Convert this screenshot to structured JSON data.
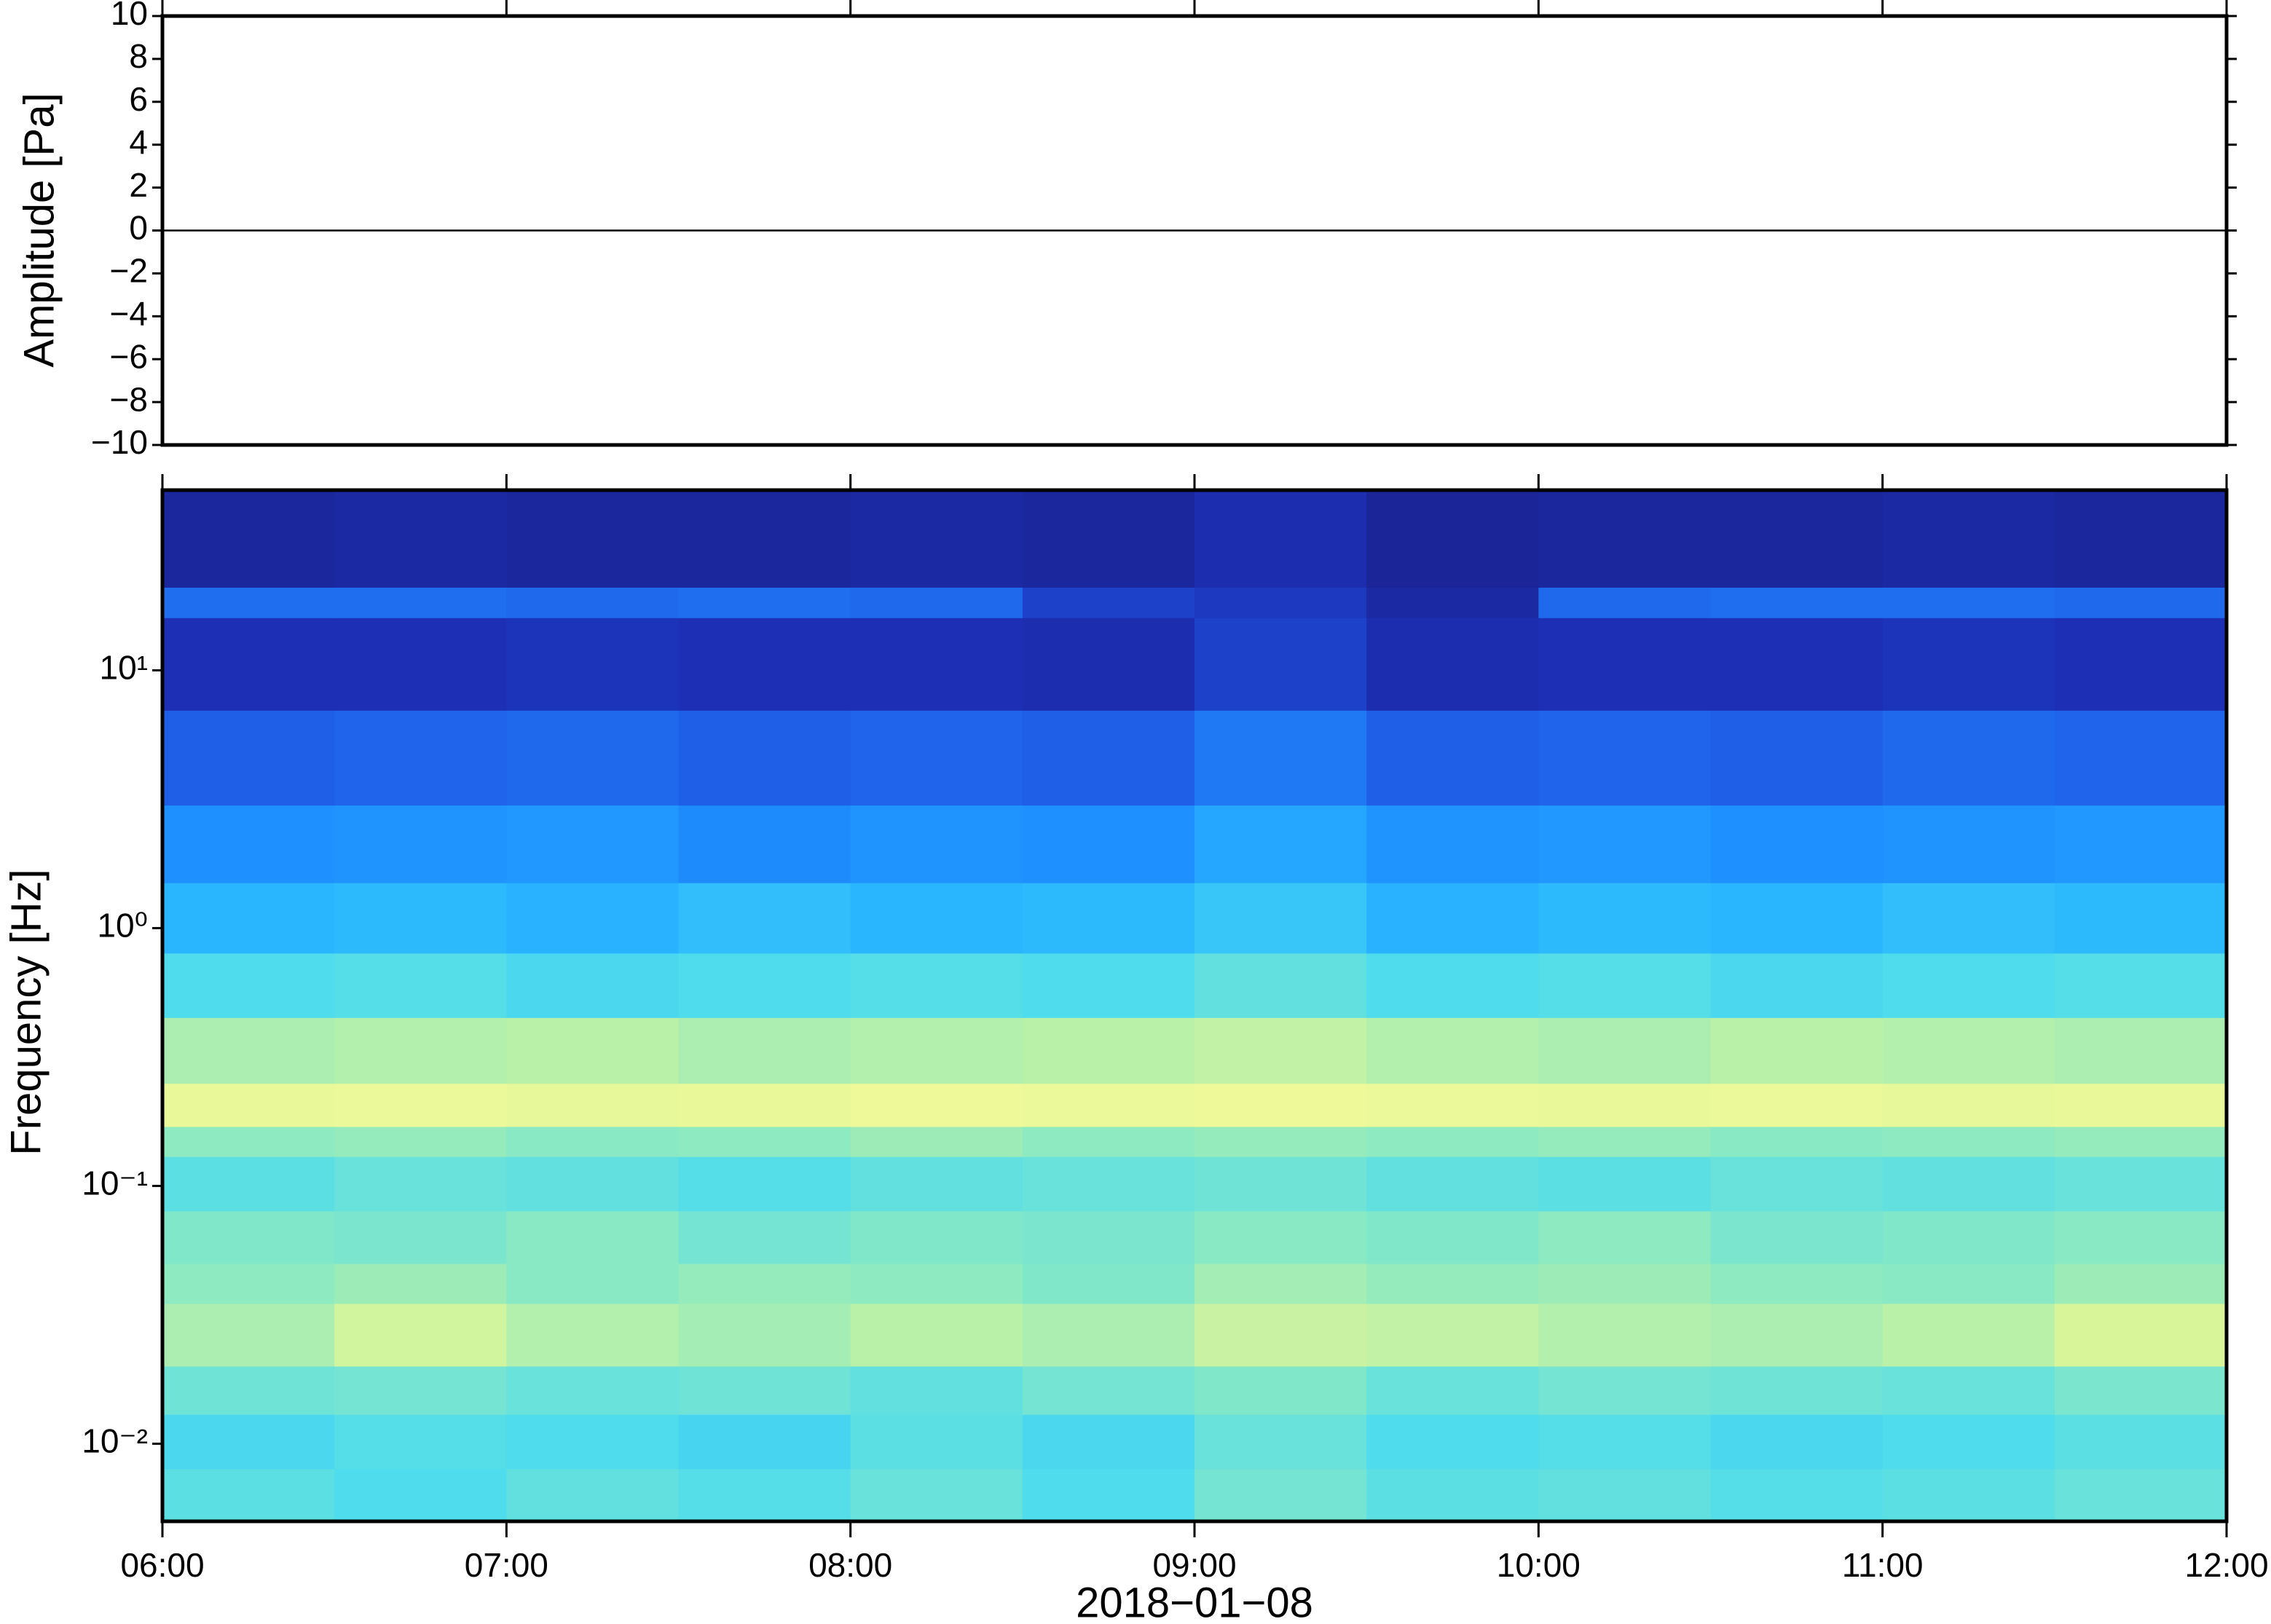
{
  "chart_data": [
    {
      "type": "line",
      "ylabel": "Amplitude [Pa]",
      "x": [
        "06:00",
        "07:00",
        "08:00",
        "09:00",
        "10:00",
        "11:00",
        "12:00"
      ],
      "values": [
        0,
        0,
        0,
        0,
        0,
        0,
        0
      ],
      "color": "#000000",
      "xlim": [
        "06:00",
        "12:00"
      ],
      "ylim": [
        -10,
        10
      ],
      "yticks": [
        {
          "value": -10,
          "label": "−10"
        },
        {
          "value": -8,
          "label": "−8"
        },
        {
          "value": -6,
          "label": "−6"
        },
        {
          "value": -4,
          "label": "−4"
        },
        {
          "value": -2,
          "label": "−2"
        },
        0,
        2,
        4,
        6,
        8,
        10
      ]
    },
    {
      "type": "heatmap",
      "ylabel": "Frequency [Hz]",
      "xlabel": "2018−01−08",
      "xlim": [
        "06:00",
        "12:00"
      ],
      "xticks": [
        "06:00",
        "07:00",
        "08:00",
        "09:00",
        "10:00",
        "11:00",
        "12:00"
      ],
      "ylim": [
        0.005,
        50
      ],
      "log_y": true,
      "yticks": [
        {
          "value": 0.01,
          "label": "10⁻²"
        },
        {
          "value": 0.1,
          "label": "10⁻¹"
        },
        {
          "value": 1,
          "label": "10⁰"
        },
        {
          "value": 10,
          "label": "10¹"
        }
      ],
      "x": [
        "06:00",
        "06:30",
        "07:00",
        "07:30",
        "08:00",
        "08:30",
        "09:00",
        "09:30",
        "10:00",
        "10:30",
        "11:00",
        "11:30",
        "12:00"
      ],
      "y": [
        0.005,
        0.008,
        0.013,
        0.02,
        0.035,
        0.05,
        0.08,
        0.13,
        0.17,
        0.25,
        0.45,
        0.8,
        1.5,
        3,
        7,
        16,
        21,
        50
      ],
      "zlim": [
        0,
        8
      ],
      "colormap": [
        "#1a1a78",
        "#1c2fb5",
        "#1f5fe8",
        "#1e90ff",
        "#29b6ff",
        "#4fdcec",
        "#8eeac0",
        "#d8f59a",
        "#f0fa9a"
      ],
      "z": [
        [
          5.2,
          5.0,
          5.3,
          5.1,
          5.4,
          5.0,
          5.6,
          5.2,
          5.3,
          5.1,
          5.2,
          5.4
        ],
        [
          4.9,
          5.1,
          5.0,
          4.8,
          5.2,
          4.9,
          5.4,
          5.0,
          5.1,
          4.9,
          5.0,
          5.2
        ],
        [
          5.5,
          5.6,
          5.4,
          5.5,
          5.3,
          5.6,
          5.8,
          5.4,
          5.6,
          5.5,
          5.4,
          5.7
        ],
        [
          6.4,
          6.9,
          6.5,
          6.3,
          6.6,
          6.4,
          6.8,
          6.7,
          6.5,
          6.4,
          6.6,
          7.0
        ],
        [
          6.0,
          6.2,
          5.9,
          6.1,
          6.0,
          5.8,
          6.3,
          6.1,
          6.2,
          6.0,
          5.9,
          6.2
        ],
        [
          5.8,
          5.7,
          5.9,
          5.6,
          5.8,
          5.7,
          5.9,
          5.8,
          6.0,
          5.7,
          5.8,
          5.9
        ],
        [
          5.2,
          5.4,
          5.3,
          5.1,
          5.3,
          5.4,
          5.5,
          5.3,
          5.2,
          5.4,
          5.3,
          5.4
        ],
        [
          6.0,
          6.1,
          5.9,
          6.0,
          6.2,
          6.0,
          6.1,
          6.0,
          6.1,
          5.9,
          6.0,
          6.1
        ],
        [
          7.7,
          7.8,
          7.6,
          7.7,
          7.9,
          7.8,
          7.9,
          7.8,
          7.7,
          7.8,
          7.6,
          7.7
        ],
        [
          6.4,
          6.5,
          6.6,
          6.4,
          6.5,
          6.6,
          6.7,
          6.5,
          6.4,
          6.6,
          6.5,
          6.4
        ],
        [
          5.0,
          5.1,
          4.9,
          5.0,
          5.1,
          5.0,
          5.3,
          5.0,
          5.1,
          4.9,
          5.0,
          5.1
        ],
        [
          4.0,
          4.1,
          3.9,
          4.2,
          4.0,
          4.1,
          4.4,
          3.9,
          4.1,
          4.0,
          4.2,
          4.1
        ],
        [
          3.0,
          3.1,
          3.2,
          2.9,
          3.1,
          3.0,
          3.6,
          3.1,
          3.2,
          3.0,
          3.1,
          3.2
        ],
        [
          2.0,
          2.1,
          2.2,
          2.0,
          2.1,
          2.0,
          2.5,
          2.0,
          2.1,
          2.0,
          2.2,
          2.1
        ],
        [
          1.0,
          1.0,
          1.1,
          1.0,
          1.0,
          0.9,
          1.4,
          0.9,
          1.0,
          1.0,
          1.1,
          1.0
        ],
        [
          2.3,
          2.3,
          2.2,
          2.3,
          2.2,
          1.4,
          1.2,
          0.7,
          2.2,
          2.3,
          2.3,
          2.2
        ],
        [
          0.6,
          0.7,
          0.6,
          0.6,
          0.7,
          0.6,
          0.9,
          0.5,
          0.6,
          0.6,
          0.7,
          0.6
        ]
      ]
    }
  ]
}
